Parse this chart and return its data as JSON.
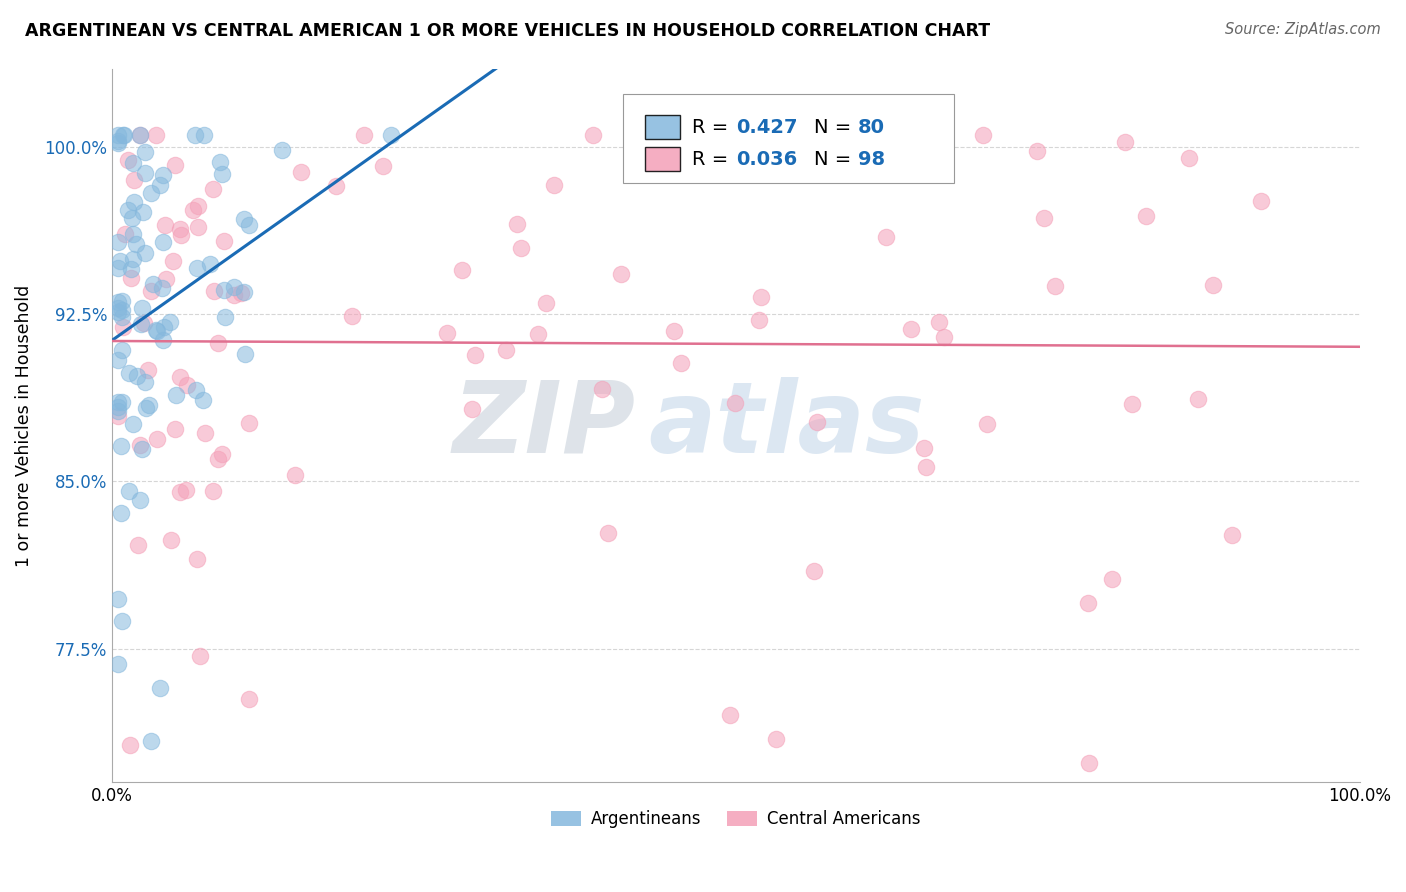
{
  "title": "ARGENTINEAN VS CENTRAL AMERICAN 1 OR MORE VEHICLES IN HOUSEHOLD CORRELATION CHART",
  "source": "Source: ZipAtlas.com",
  "ylabel": "1 or more Vehicles in Household",
  "xlim": [
    0.0,
    1.0
  ],
  "ylim": [
    0.715,
    1.035
  ],
  "ytick_positions": [
    0.775,
    0.85,
    0.925,
    1.0
  ],
  "ytick_labels": [
    "77.5%",
    "85.0%",
    "92.5%",
    "100.0%"
  ],
  "argentinean_line_color": "#1a6bb5",
  "central_american_line_color": "#e07090",
  "scatter_blue_color": "#85b8dd",
  "scatter_pink_color": "#f4a0b8",
  "scatter_alpha": 0.55,
  "scatter_size": 140,
  "watermark_zip": "ZIP",
  "watermark_atlas": "atlas",
  "background_color": "#ffffff",
  "grid_color": "#cccccc",
  "grid_alpha": 0.8,
  "R_arg": "0.427",
  "N_arg": "80",
  "R_ca": "0.036",
  "N_ca": "98"
}
